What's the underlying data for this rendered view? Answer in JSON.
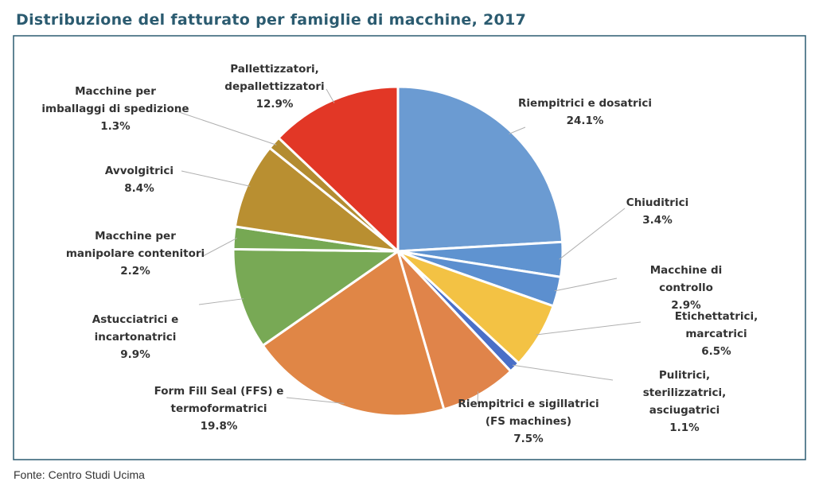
{
  "chart_data": {
    "type": "pie",
    "title": "Distribuzione del fatturato per famiglie di macchine, 2017",
    "source": "Fonte: Centro Studi Ucima",
    "categories": [
      "Riempitrici e dosatrici",
      "Chiuditrici",
      "Macchine di controllo",
      "Etichettatrici, marcatrici",
      "Pulitrici, sterilizzatrici,\nasciugatrici",
      "Riempitrici e sigillatrici\n(FS machines)",
      "Form Fill Seal (FFS) e\ntermoformatrici",
      "Astucciatrici e\nincartonatrici",
      "Macchine per\nmanipolare contenitori",
      "Avvolgitrici",
      "Macchine per\nimballaggi di spedizione",
      "Pallettizzatori,\ndepallettizzatori"
    ],
    "values": [
      24.1,
      3.4,
      2.9,
      6.5,
      1.1,
      7.5,
      19.8,
      9.9,
      2.2,
      8.4,
      1.3,
      12.9
    ],
    "value_labels": [
      "24.1%",
      "3.4%",
      "2.9%",
      "6.5%",
      "1.1%",
      "7.5%",
      "19.8%",
      "9.9%",
      "2.2%",
      "8.4%",
      "1.3%",
      "12.9%"
    ],
    "colors": [
      "#6b9bd2",
      "#5f93d0",
      "#5c8fcf",
      "#f3c244",
      "#4a6fc7",
      "#e0844a",
      "#e08646",
      "#78a955",
      "#76a853",
      "#b98f31",
      "#b38c30",
      "#e23726"
    ]
  }
}
